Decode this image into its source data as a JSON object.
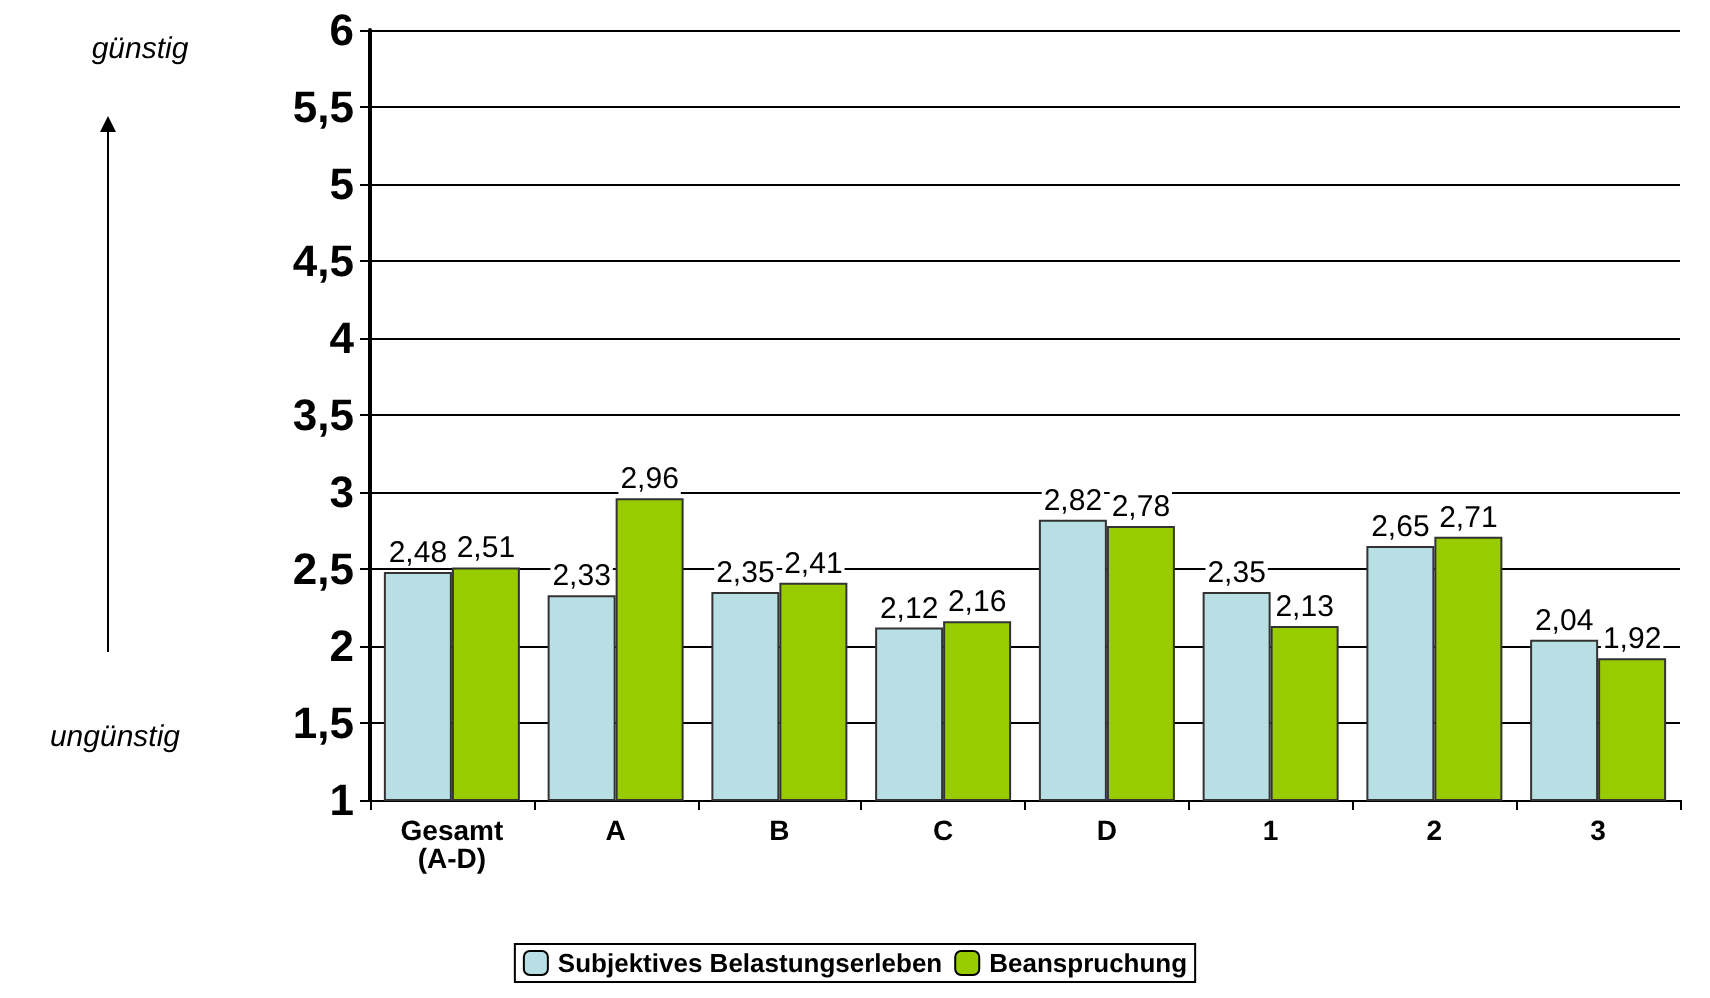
{
  "chart_data": {
    "type": "bar",
    "categories": [
      "Gesamt\n(A-D)",
      "A",
      "B",
      "C",
      "D",
      "1",
      "2",
      "3"
    ],
    "series": [
      {
        "name": "Subjektives Belastungserleben",
        "color": "#b8dfe3",
        "values": [
          2.48,
          2.33,
          2.35,
          2.12,
          2.82,
          2.35,
          2.65,
          2.04
        ],
        "value_labels": [
          "2,48",
          "2,33",
          "2,35",
          "2,12",
          "2,82",
          "2,35",
          "2,65",
          "2,04"
        ]
      },
      {
        "name": "Beanspruchung",
        "color": "#99cc00",
        "values": [
          2.51,
          2.96,
          2.41,
          2.16,
          2.78,
          2.13,
          2.71,
          1.92
        ],
        "value_labels": [
          "2,51",
          "2,96",
          "2,41",
          "2,16",
          "2,78",
          "2,13",
          "2,71",
          "1,92"
        ]
      }
    ],
    "ylim": [
      1,
      6
    ],
    "yticks": [
      1,
      {
        "value": 1.5,
        "label": "1,5"
      },
      2,
      {
        "value": 2.5,
        "label": "2,5"
      },
      3,
      {
        "value": 3.5,
        "label": "3,5"
      },
      4,
      {
        "value": 4.5,
        "label": "4,5"
      },
      5,
      {
        "value": 5.5,
        "label": "5,5"
      },
      6
    ],
    "grid": "y",
    "legend": "bottom",
    "annotations": [
      "günstig",
      "ungünstig"
    ]
  }
}
